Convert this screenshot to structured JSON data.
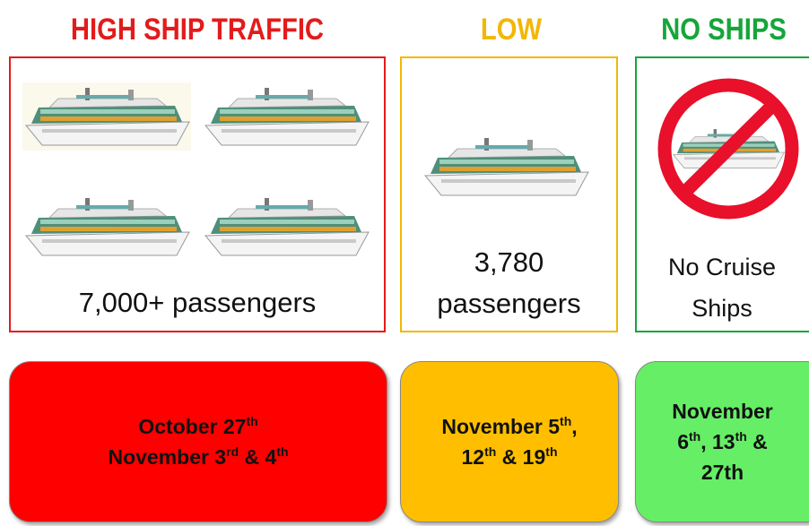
{
  "columns": [
    {
      "heading": "HIGH SHIP TRAFFIC",
      "passengers": [
        "7,000+ passengers"
      ],
      "dates": [
        [
          {
            "t": "October 27"
          },
          {
            "sup": "th"
          }
        ],
        [
          {
            "t": "November 3"
          },
          {
            "sup": "rd"
          },
          {
            "t": " & 4"
          },
          {
            "sup": "th"
          }
        ]
      ]
    },
    {
      "heading": "LOW",
      "passengers": [
        "3,780",
        "passengers"
      ],
      "dates": [
        [
          {
            "t": "November 5"
          },
          {
            "sup": "th"
          },
          {
            "t": ","
          }
        ],
        [
          {
            "t": "12"
          },
          {
            "sup": "th"
          },
          {
            "t": " & 19"
          },
          {
            "sup": "th"
          }
        ]
      ]
    },
    {
      "heading": "NO SHIPS",
      "passengers": [
        "No Cruise",
        "Ships"
      ],
      "dates": [
        [
          {
            "t": "November"
          }
        ],
        [
          {
            "t": "6"
          },
          {
            "sup": "th"
          },
          {
            "t": ", 13"
          },
          {
            "sup": "th"
          },
          {
            "t": " &"
          }
        ],
        [
          {
            "t": "27th"
          }
        ]
      ]
    }
  ]
}
